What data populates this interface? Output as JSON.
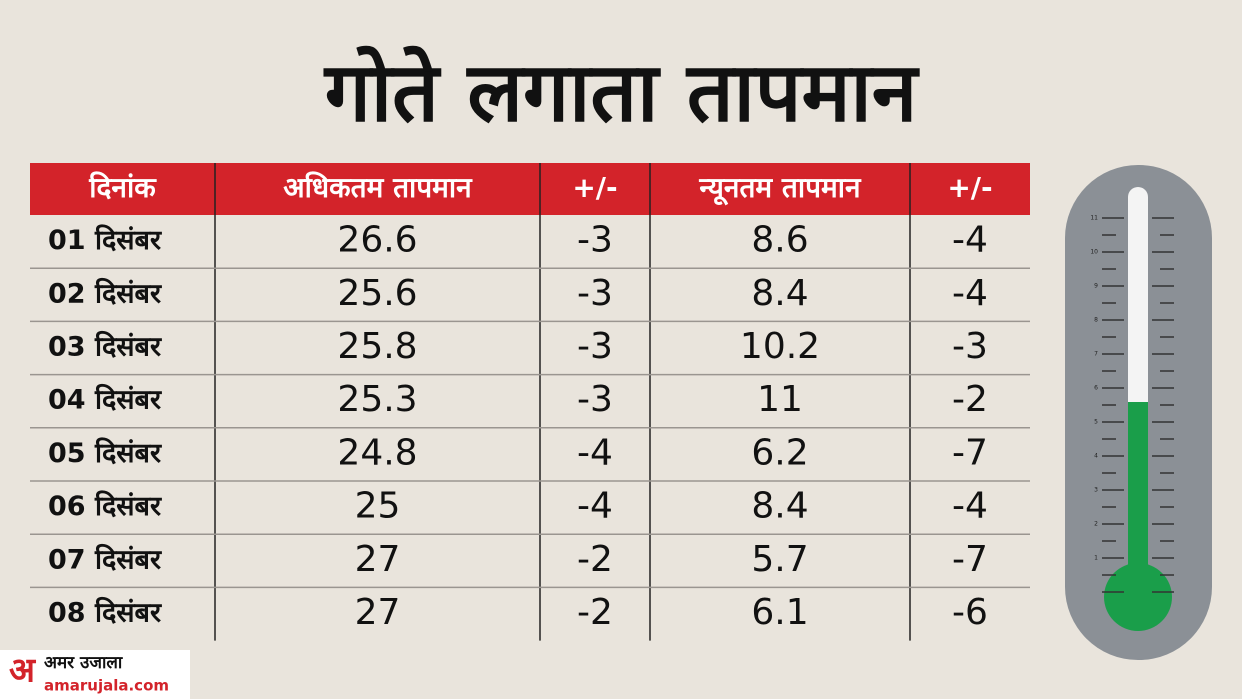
{
  "title": "गोते लगाता तापमान",
  "table": {
    "header": [
      "दिनांक",
      "अधिकतम तापमान",
      "+/-",
      "न्यूनतम तापमान",
      "+/-"
    ],
    "rows": [
      [
        "01 दिसंबर",
        "26.6",
        "-3",
        "8.6",
        "-4"
      ],
      [
        "02 दिसंबर",
        "25.6",
        "-3",
        "8.4",
        "-4"
      ],
      [
        "03 दिसंबर",
        "25.8",
        "-3",
        "10.2",
        "-3"
      ],
      [
        "04 दिसंबर",
        "25.3",
        "-3",
        "11",
        "-2"
      ],
      [
        "05 दिसंबर",
        "24.8",
        "-4",
        "6.2",
        "-7"
      ],
      [
        "06 दिसंबर",
        "25",
        "-4",
        "8.4",
        "-4"
      ],
      [
        "07 दिसंबर",
        "27",
        "-2",
        "5.7",
        "-7"
      ],
      [
        "08 दिसंबर",
        "27",
        "-2",
        "6.1",
        "-6"
      ]
    ]
  },
  "thermometer": {
    "ticks": [
      "1",
      "2",
      "3",
      "4",
      "5",
      "6",
      "7",
      "8",
      "9",
      "10",
      "11"
    ]
  },
  "logo": {
    "mark": "अ",
    "name": "अमर उजाला",
    "site": "amarujala.com"
  }
}
